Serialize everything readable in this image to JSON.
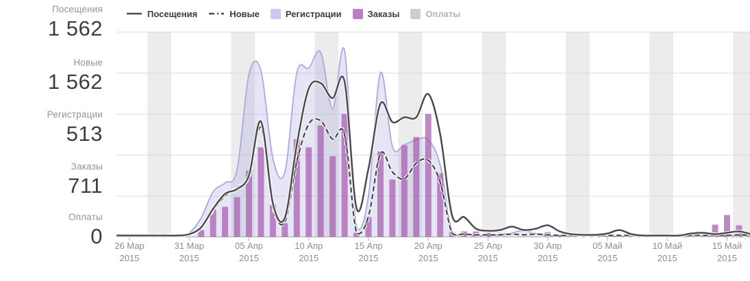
{
  "sidebar": {
    "metrics": [
      {
        "key": "visits",
        "label": "Посещения",
        "value": "1 562"
      },
      {
        "key": "new",
        "label": "Новые",
        "value": "1 562"
      },
      {
        "key": "registrations",
        "label": "Регистрации",
        "value": "513"
      },
      {
        "key": "orders",
        "label": "Заказы",
        "value": "711"
      },
      {
        "key": "payments",
        "label": "Оплаты",
        "value": "0"
      }
    ]
  },
  "legend": {
    "items": [
      {
        "key": "visits",
        "label": "Посещения",
        "swatch": "line",
        "color": "#4b4b4b",
        "muted": false
      },
      {
        "key": "new",
        "label": "Новые",
        "swatch": "dash",
        "color": "#4b4b4b",
        "muted": false
      },
      {
        "key": "registrations",
        "label": "Регистрации",
        "swatch": "square",
        "color": "#c8c8f0",
        "muted": false
      },
      {
        "key": "orders",
        "label": "Заказы",
        "swatch": "square",
        "color": "#c07ec6",
        "muted": false
      },
      {
        "key": "payments",
        "label": "Оплаты",
        "swatch": "square",
        "color": "#cdcdcd",
        "muted": true
      }
    ]
  },
  "colors": {
    "line": "#4b4b4b",
    "area_stroke": "#a9a9e2",
    "area_fill": "rgba(162,162,220,0.28)",
    "bar": "#a75caf",
    "weekend_band": "#ececec",
    "gridline": "#d9d9d9",
    "axis_line": "#a8a8a8",
    "tick": "#b3b3b3",
    "tick_label": "#8e8e87"
  },
  "chart_data": {
    "type": "combo",
    "x_dates": [
      "2015-03-26",
      "2015-03-27",
      "2015-03-28",
      "2015-03-29",
      "2015-03-30",
      "2015-03-31",
      "2015-04-01",
      "2015-04-02",
      "2015-04-03",
      "2015-04-04",
      "2015-04-05",
      "2015-04-06",
      "2015-04-07",
      "2015-04-08",
      "2015-04-09",
      "2015-04-10",
      "2015-04-11",
      "2015-04-12",
      "2015-04-13",
      "2015-04-14",
      "2015-04-15",
      "2015-04-16",
      "2015-04-17",
      "2015-04-18",
      "2015-04-19",
      "2015-04-20",
      "2015-04-21",
      "2015-04-22",
      "2015-04-23",
      "2015-04-24",
      "2015-04-25",
      "2015-04-26",
      "2015-04-27",
      "2015-04-28",
      "2015-04-29",
      "2015-04-30",
      "2015-05-01",
      "2015-05-02",
      "2015-05-03",
      "2015-05-04",
      "2015-05-05",
      "2015-05-06",
      "2015-05-07",
      "2015-05-08",
      "2015-05-09",
      "2015-05-10",
      "2015-05-11",
      "2015-05-12",
      "2015-05-13",
      "2015-05-14",
      "2015-05-15",
      "2015-05-16",
      "2015-05-17"
    ],
    "series": [
      {
        "key": "visits",
        "name": "Посещения",
        "type": "line",
        "style": "solid",
        "color": "#4b4b4b",
        "values": [
          2,
          2,
          2,
          2,
          2,
          4,
          14,
          41,
          63,
          70,
          90,
          169,
          49,
          28,
          135,
          217,
          225,
          203,
          227,
          42,
          100,
          195,
          168,
          175,
          175,
          209,
          150,
          31,
          29,
          12,
          9,
          10,
          15,
          10,
          12,
          17,
          8,
          4,
          3,
          3,
          5,
          10,
          4,
          2,
          2,
          2,
          2,
          5,
          6,
          4,
          6,
          8,
          4
        ]
      },
      {
        "key": "new",
        "name": "Новые",
        "type": "line",
        "style": "dashed",
        "color": "#4b4b4b",
        "values": [
          2,
          2,
          2,
          2,
          2,
          4,
          13,
          39,
          60,
          72,
          88,
          160,
          45,
          22,
          110,
          165,
          170,
          143,
          150,
          6,
          30,
          122,
          95,
          85,
          108,
          112,
          80,
          5,
          4,
          3,
          3,
          3,
          4,
          3,
          4,
          3,
          2,
          2,
          2,
          2,
          2,
          2,
          2,
          1,
          1,
          1,
          1,
          2,
          2,
          2,
          2,
          3,
          2
        ]
      },
      {
        "key": "registrations",
        "name": "Регистрации",
        "type": "area",
        "color": "#a9a9e2",
        "fill": "rgba(162,162,220,0.28)",
        "values": [
          0,
          0,
          0,
          0,
          1,
          6,
          28,
          66,
          79,
          98,
          238,
          243,
          115,
          95,
          240,
          247,
          270,
          187,
          272,
          15,
          60,
          240,
          132,
          135,
          142,
          142,
          105,
          6,
          3,
          2,
          2,
          3,
          6,
          9,
          5,
          2,
          1,
          1,
          1,
          1,
          1,
          1,
          1,
          1,
          0,
          0,
          1,
          2,
          2,
          1,
          2,
          2,
          1
        ]
      },
      {
        "key": "orders",
        "name": "Заказы",
        "type": "bar",
        "color": "#a75caf",
        "opacity": 0.72,
        "values": [
          0,
          0,
          0,
          0,
          0,
          0,
          10,
          40,
          44,
          58,
          97,
          131,
          47,
          20,
          143,
          131,
          163,
          118,
          180,
          6,
          29,
          125,
          84,
          134,
          146,
          180,
          93,
          7,
          8,
          8,
          6,
          0,
          0,
          0,
          0,
          7,
          3,
          0,
          0,
          0,
          0,
          0,
          0,
          0,
          0,
          0,
          0,
          0,
          0,
          18,
          32,
          17,
          0
        ]
      },
      {
        "key": "payments",
        "name": "Оплаты",
        "type": "bar",
        "color": "#cdcdcd",
        "opacity": 0.72,
        "values": [
          0,
          0,
          0,
          0,
          0,
          0,
          0,
          0,
          0,
          0,
          0,
          0,
          0,
          0,
          0,
          0,
          0,
          0,
          0,
          0,
          0,
          0,
          0,
          0,
          0,
          0,
          0,
          0,
          0,
          0,
          0,
          0,
          0,
          0,
          0,
          0,
          0,
          0,
          0,
          0,
          0,
          0,
          0,
          0,
          0,
          0,
          0,
          0,
          0,
          0,
          0,
          0,
          0
        ]
      }
    ],
    "x_ticks": [
      {
        "day_index": 0,
        "label": "26 Мар",
        "year": "2015"
      },
      {
        "day_index": 5,
        "label": "31 Мар",
        "year": "2015"
      },
      {
        "day_index": 10,
        "label": "05 Апр",
        "year": "2015"
      },
      {
        "day_index": 15,
        "label": "10 Апр",
        "year": "2015"
      },
      {
        "day_index": 20,
        "label": "15 Апр",
        "year": "2015"
      },
      {
        "day_index": 25,
        "label": "20 Апр",
        "year": "2015"
      },
      {
        "day_index": 30,
        "label": "25 Апр",
        "year": "2015"
      },
      {
        "day_index": 35,
        "label": "30 Апр",
        "year": "2015"
      },
      {
        "day_index": 40,
        "label": "05 Май",
        "year": "2015"
      },
      {
        "day_index": 45,
        "label": "10 Май",
        "year": "2015"
      },
      {
        "day_index": 50,
        "label": "15 Май",
        "year": "2015"
      }
    ],
    "weekend_band_day_offsets": [
      2,
      9,
      16,
      23,
      30,
      37,
      44,
      51
    ],
    "y_axis": {
      "labels_visible": false,
      "gridline_rows": 5,
      "value_scale": "relative (no axis labels shown)",
      "ymax": 300
    },
    "grid": true,
    "legend_position": "top"
  }
}
